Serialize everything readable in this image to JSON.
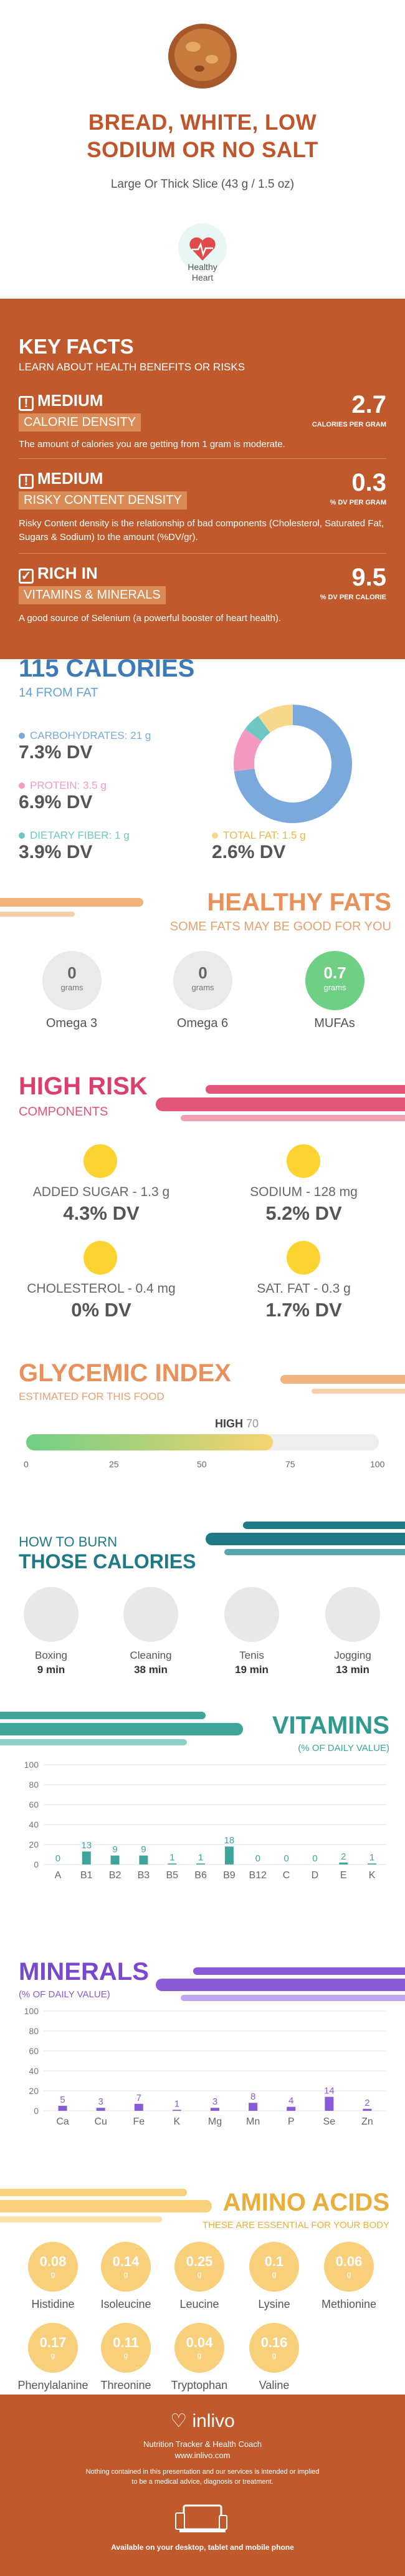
{
  "header": {
    "title_line1": "BREAD, WHITE, LOW",
    "title_line2": "SODIUM OR NO SALT",
    "subtitle": "Large Or Thick Slice (43 g / 1.5 oz)",
    "badge_label_1": "Healthy",
    "badge_label_2": "Heart"
  },
  "key_facts": {
    "title": "KEY FACTS",
    "subtitle": "LEARN ABOUT HEALTH BENEFITS OR RISKS",
    "calorie": {
      "level": "MEDIUM",
      "name": "CALORIE DENSITY",
      "value": "2.7",
      "caption": "CALORIES PER GRAM",
      "desc": "The amount of calories you are getting from 1 gram is moderate."
    },
    "risky": {
      "level": "MEDIUM",
      "name": "RISKY CONTENT DENSITY",
      "value": "0.3",
      "caption": "% DV PER GRAM",
      "desc": "Risky Content density is the relationship of bad components (Cholesterol, Saturated Fat, Sugars & Sodium) to the amount (%DV/gr)."
    },
    "vitamins": {
      "level": "RICH  IN",
      "name": "VITAMINS & MINERALS",
      "value": "9.5",
      "caption": "% DV PER CALORIE",
      "desc": "A good source of Selenium (a powerful booster of heart health)."
    }
  },
  "calories": {
    "title": "115 CALORIES",
    "fat": "14 FROM FAT",
    "carbs_label": "CARBOHYDRATES: 21 g",
    "carbs_dv": "7.3% DV",
    "protein_label": "PROTEIN: 3.5 g",
    "protein_dv": "6.9% DV",
    "fiber_label": "DIETARY FIBER: 1 g",
    "fiber_dv": "3.9% DV",
    "fat_label": "TOTAL FAT: 1.5 g",
    "fat_dv": "2.6% DV",
    "colors": {
      "carbs": "#7ba9db",
      "protein": "#f49ac1",
      "fiber": "#6fc7c2",
      "fat": "#f7d88c"
    },
    "pie_shares": [
      0.73,
      0.12,
      0.05,
      0.1
    ]
  },
  "healthy_fats": {
    "title": "HEALTHY FATS",
    "subtitle": "SOME FATS MAY BE GOOD FOR YOU",
    "items": [
      {
        "value": "0",
        "unit": "grams",
        "label": "Omega 3"
      },
      {
        "value": "0",
        "unit": "grams",
        "label": "Omega 6"
      },
      {
        "value": "0.7",
        "unit": "grams",
        "label": "MUFAs"
      }
    ]
  },
  "high_risk": {
    "title": "HIGH RISK",
    "subtitle": "COMPONENTS",
    "items": [
      {
        "label": "ADDED SUGAR - 1.3 g",
        "dv": "4.3% DV"
      },
      {
        "label": "SODIUM - 128 mg",
        "dv": "5.2% DV"
      },
      {
        "label": "CHOLESTEROL - 0.4 mg",
        "dv": "0% DV"
      },
      {
        "label": "SAT. FAT - 0.3 g",
        "dv": "1.7% DV"
      }
    ]
  },
  "glycemic": {
    "title": "GLYCEMIC INDEX",
    "subtitle": "ESTIMATED FOR THIS FOOD",
    "level": "HIGH",
    "value": "70",
    "score": 70,
    "ticks": [
      "0",
      "25",
      "50",
      "75",
      "100"
    ]
  },
  "burn": {
    "title_1": "HOW TO BURN",
    "title_2": "THOSE CALORIES",
    "items": [
      {
        "label": "Boxing",
        "min": "9 min"
      },
      {
        "label": "Cleaning",
        "min": "38 min"
      },
      {
        "label": "Tenis",
        "min": "19 min"
      },
      {
        "label": "Jogging",
        "min": "13 min"
      }
    ]
  },
  "vitamins": {
    "title": "VITAMINS",
    "subtitle": "(% OF DAILY VALUE)",
    "y_ticks": [
      "100",
      "80",
      "60",
      "40",
      "20",
      "0"
    ],
    "chart_data": {
      "type": "bar",
      "categories": [
        "A",
        "B1",
        "B2",
        "B3",
        "B5",
        "B6",
        "B9",
        "B12",
        "C",
        "D",
        "E",
        "K"
      ],
      "values": [
        0,
        13,
        9,
        9,
        1,
        1,
        18,
        0,
        0,
        0,
        2,
        1
      ],
      "ylim": [
        0,
        100
      ]
    }
  },
  "minerals": {
    "title": "MINERALS",
    "subtitle": "(% OF DAILY VALUE)",
    "y_ticks": [
      "100",
      "80",
      "60",
      "40",
      "20",
      "0"
    ],
    "chart_data": {
      "type": "bar",
      "categories": [
        "Ca",
        "Cu",
        "Fe",
        "K",
        "Mg",
        "Mn",
        "P",
        "Se",
        "Zn"
      ],
      "values": [
        5,
        3,
        7,
        1,
        3,
        8,
        4,
        14,
        2
      ],
      "ylim": [
        0,
        100
      ]
    }
  },
  "amino": {
    "title": "AMINO ACIDS",
    "subtitle": "THESE ARE ESSENTIAL FOR YOUR BODY",
    "unit": "g",
    "items": [
      {
        "value": "0.08",
        "label": "Histidine"
      },
      {
        "value": "0.14",
        "label": "Isoleucine"
      },
      {
        "value": "0.25",
        "label": "Leucine"
      },
      {
        "value": "0.1",
        "label": "Lysine"
      },
      {
        "value": "0.06",
        "label": "Methionine"
      },
      {
        "value": "0.17",
        "label": "Phenylalanine"
      },
      {
        "value": "0.11",
        "label": "Threonine"
      },
      {
        "value": "0.04",
        "label": "Tryptophan"
      },
      {
        "value": "0.16",
        "label": "Valine"
      }
    ]
  },
  "footer": {
    "brand": "inlivo",
    "tagline": "Nutrition Tracker & Health Coach",
    "url": "www.inlivo.com",
    "disclaimer_1": "Nothing contained in this presentation and our services is intended or implied",
    "disclaimer_2": "to be a medical advice, diagnosis or treatment.",
    "available": "Available on your desktop, tablet and mobile phone"
  }
}
